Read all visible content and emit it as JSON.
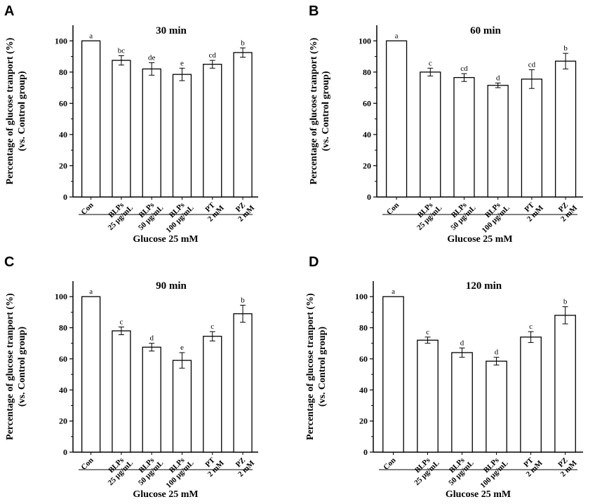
{
  "chart_data": [
    {
      "panel": "A",
      "type": "bar",
      "title": "30 min",
      "ylabel": [
        "Percentage of glucose tranport (%)",
        "(vs. Control group)"
      ],
      "xlabel": "Glucose 25 mM",
      "ylim": [
        0,
        110
      ],
      "yticks": [
        0,
        20,
        40,
        60,
        80,
        100
      ],
      "categories": [
        [
          "Con"
        ],
        [
          "BLPs",
          "25 μg/mL"
        ],
        [
          "BLPs",
          "50 μg/mL"
        ],
        [
          "BLPs",
          "100 μg/mL"
        ],
        [
          "PT",
          "2 mM"
        ],
        [
          "PZ",
          "2 mM"
        ]
      ],
      "values": [
        100,
        87.5,
        82,
        78.5,
        85,
        92.5
      ],
      "errors": [
        0,
        3,
        4,
        4,
        2.5,
        3
      ],
      "letters": [
        "a",
        "bc",
        "de",
        "e",
        "cd",
        "b"
      ]
    },
    {
      "panel": "B",
      "type": "bar",
      "title": "60 min",
      "ylabel": [
        "Percentage of glucose tranport (%)",
        "(vs. Control group)"
      ],
      "xlabel": "Glucose 25 mM",
      "ylim": [
        0,
        110
      ],
      "yticks": [
        0,
        20,
        40,
        60,
        80,
        100
      ],
      "categories": [
        [
          "Con"
        ],
        [
          "BLPs",
          "25 μg/mL"
        ],
        [
          "BLPs",
          "50 μg/mL"
        ],
        [
          "BLPs",
          "100 μg/mL"
        ],
        [
          "PT",
          "2 mM"
        ],
        [
          "PZ",
          "2 mM"
        ]
      ],
      "values": [
        100,
        80,
        76.5,
        71.5,
        75.5,
        87
      ],
      "errors": [
        0,
        2.5,
        2.5,
        1.5,
        6,
        5
      ],
      "letters": [
        "a",
        "c",
        "cd",
        "d",
        "cd",
        "b"
      ]
    },
    {
      "panel": "C",
      "type": "bar",
      "title": "90 min",
      "ylabel": [
        "Percentage of glucose tranport (%)",
        "(vs. Control group)"
      ],
      "xlabel": "Glucose 25 mM",
      "ylim": [
        0,
        110
      ],
      "yticks": [
        0,
        20,
        40,
        60,
        80,
        100
      ],
      "categories": [
        [
          "Con"
        ],
        [
          "BLPs",
          "25 μg/mL"
        ],
        [
          "BLPs",
          "50 μg/mL"
        ],
        [
          "BLPs",
          "100 μg/mL"
        ],
        [
          "PT",
          "2 mM"
        ],
        [
          "PZ",
          "2 mM"
        ]
      ],
      "values": [
        100,
        78,
        67.5,
        59,
        74.5,
        89
      ],
      "errors": [
        0,
        2.5,
        2.5,
        5,
        3,
        5.5
      ],
      "letters": [
        "a",
        "c",
        "d",
        "e",
        "c",
        "b"
      ]
    },
    {
      "panel": "D",
      "type": "bar",
      "title": "120 min",
      "ylabel": [
        "Percentage of glucose tranport (%)",
        "(vs. Control group)"
      ],
      "xlabel": "Glucose 25 mM",
      "ylim": [
        0,
        110
      ],
      "yticks": [
        0,
        20,
        40,
        60,
        80,
        100
      ],
      "categories": [
        [
          "Con"
        ],
        [
          "BLPs",
          "25 μg/mL"
        ],
        [
          "BLPs",
          "50 μg/mL"
        ],
        [
          "BLPs",
          "100 μg/mL"
        ],
        [
          "PT",
          "2 mM"
        ],
        [
          "PZ",
          "2 mM"
        ]
      ],
      "values": [
        100,
        72,
        64,
        58.5,
        74,
        88
      ],
      "errors": [
        0,
        2,
        3,
        2.5,
        3.5,
        5.5
      ],
      "letters": [
        "a",
        "c",
        "d",
        "d",
        "c",
        "b"
      ]
    }
  ]
}
